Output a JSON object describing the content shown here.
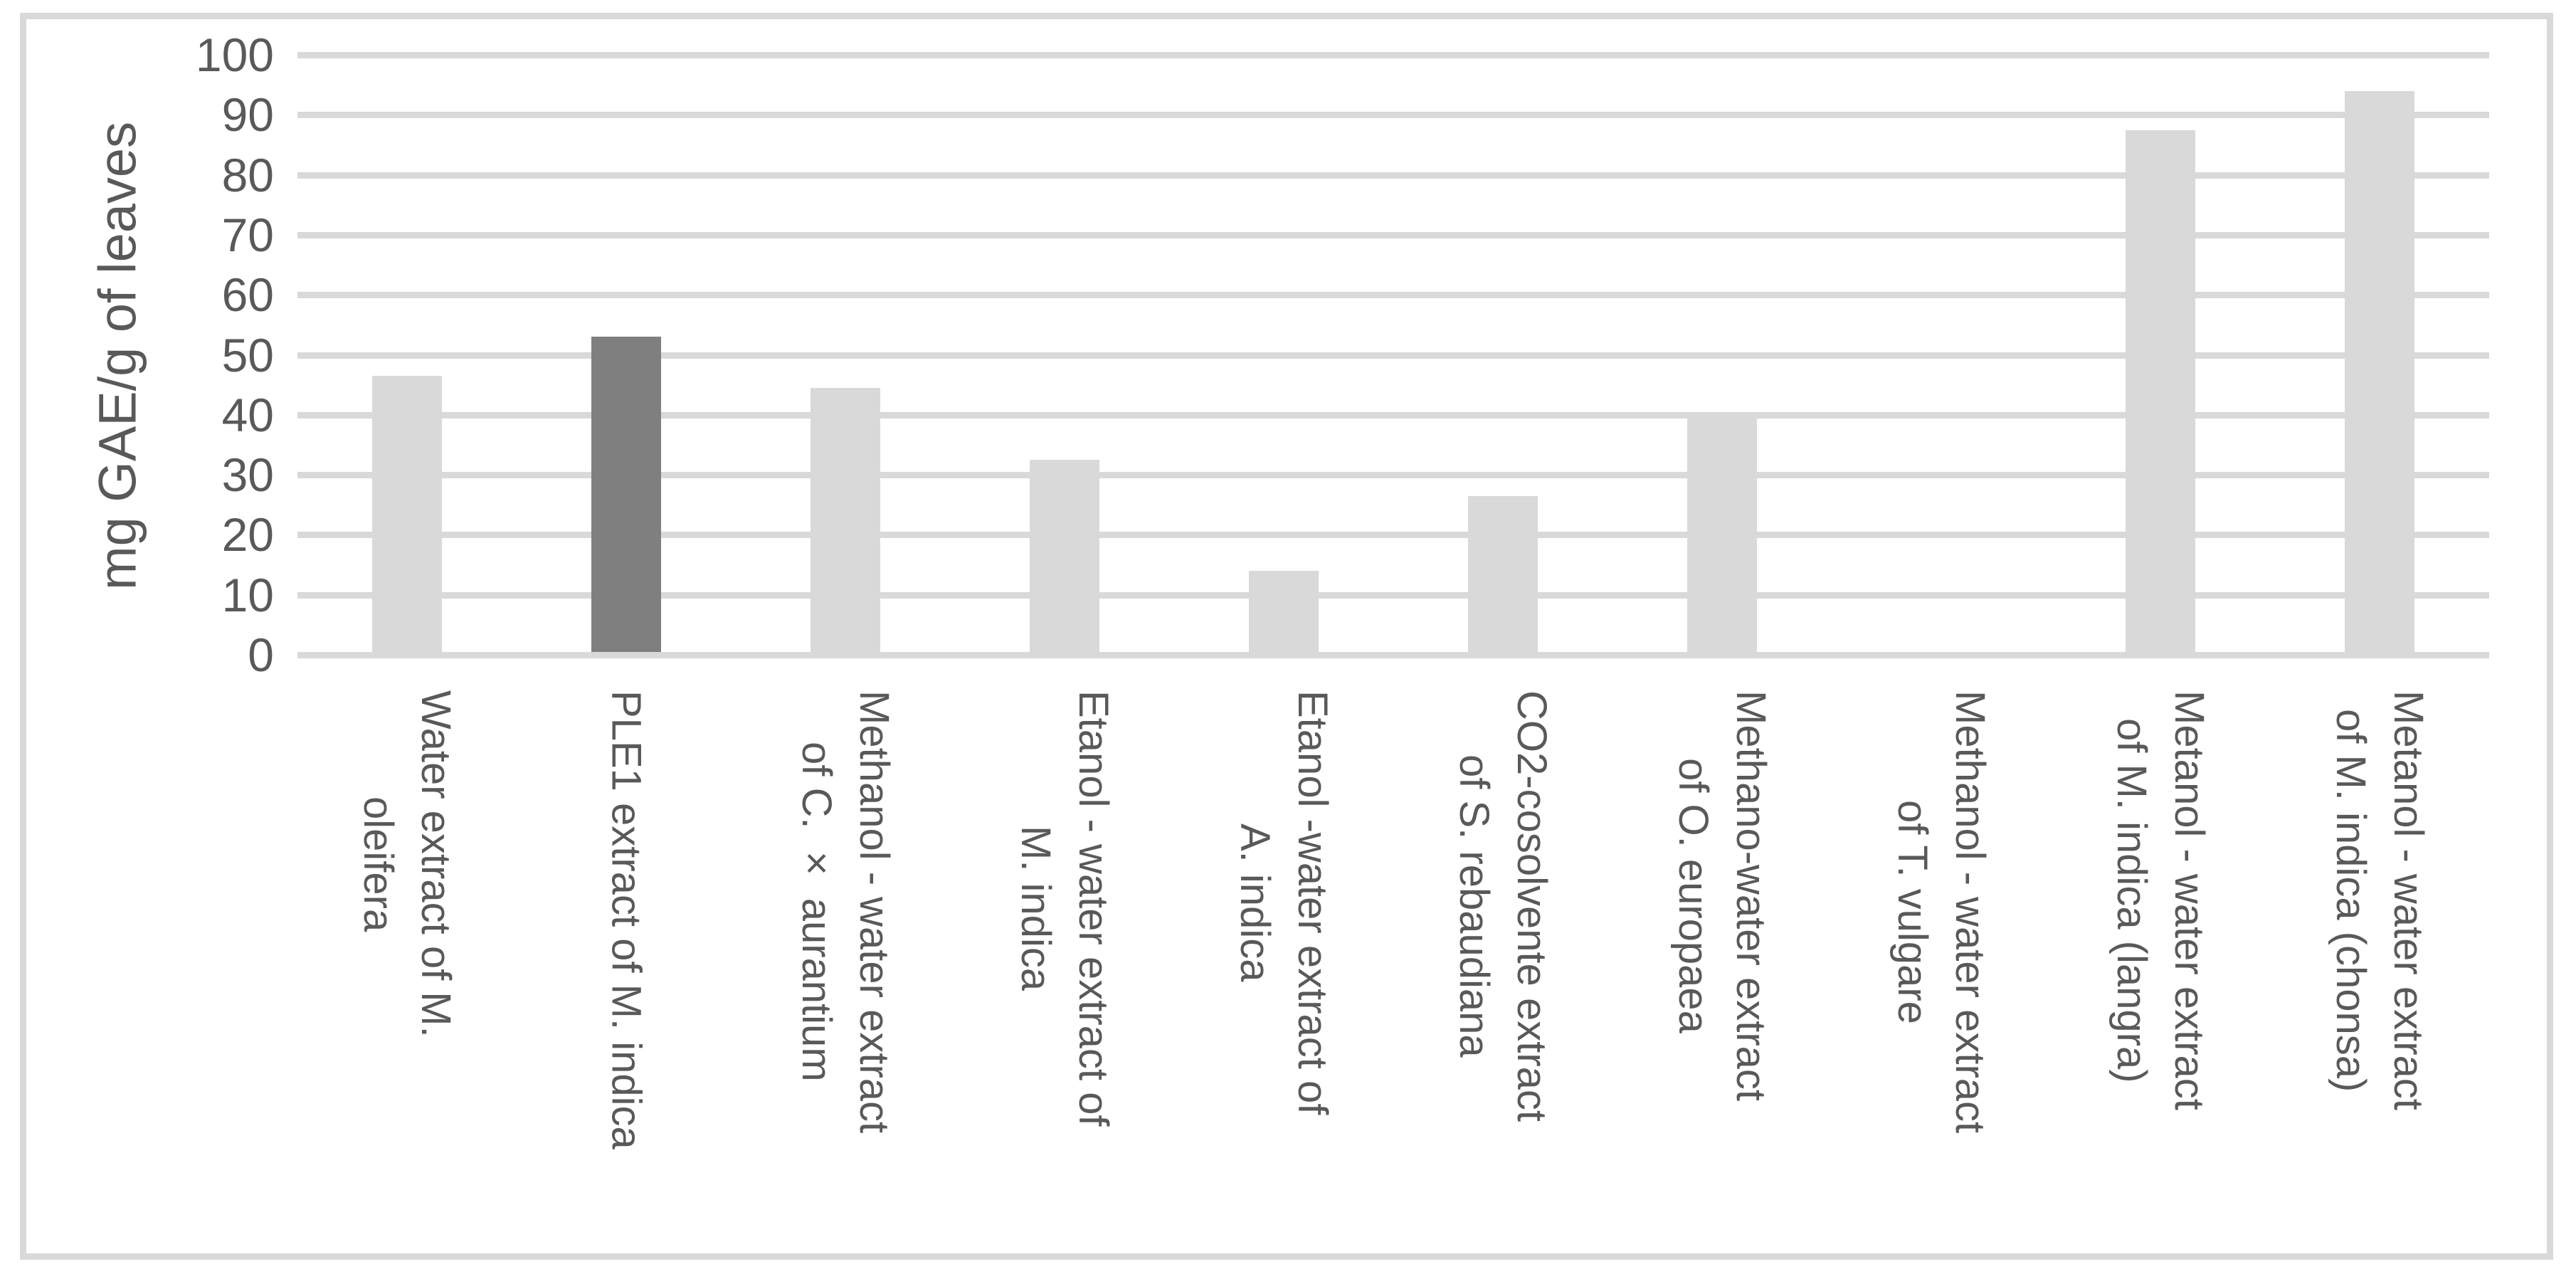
{
  "colors": {
    "bar_default": "#d9d9d9",
    "bar_highlight": "#7f7f7f",
    "gridline": "#d9d9d9",
    "frame_border": "#d9d9d9",
    "text": "#595959",
    "background": "#ffffff"
  },
  "chart_data": {
    "type": "bar",
    "title": "",
    "xlabel": "",
    "ylabel": "mg GAE/g of leaves",
    "ylim": [
      0,
      100
    ],
    "ytick_step": 10,
    "yticks": [
      0,
      10,
      20,
      30,
      40,
      50,
      60,
      70,
      80,
      90,
      100
    ],
    "grid": true,
    "legend": false,
    "categories": [
      "Water extract of M. oleifera",
      "PLE1 extract of M. indica",
      "Methanol - water extract of C. × aurantium",
      "Etanol - water extract of M. indica",
      "Etanol -water extract of A. indica",
      "CO2-cosolvente extract of S. rebaudiana",
      "Methano-water extract of O. europaea",
      "Methanol - water extract of T. vulgare",
      "Metanol - water extract of M. indica (langra)",
      "Metanol - water extract of M. indica (chonsa)"
    ],
    "category_lines": [
      [
        "Water extract of M.",
        "oleifera"
      ],
      [
        "PLE1 extract of M. indica"
      ],
      [
        "Methanol - water extract",
        "of C. × aurantium"
      ],
      [
        "Etanol - water extract of",
        "M. indica"
      ],
      [
        "Etanol -water extract of",
        "A. indica"
      ],
      [
        "CO2-cosolvente extract",
        "of S. rebaudiana"
      ],
      [
        "Methano-water extract",
        "of O. europaea"
      ],
      [
        "Methanol - water extract",
        "of T. vulgare"
      ],
      [
        "Metanol - water extract",
        "of M. indica (langra)"
      ],
      [
        "Metanol - water extract",
        "of M. indica (chonsa)"
      ]
    ],
    "values": [
      46,
      52.5,
      44,
      32,
      13.5,
      26,
      39,
      0,
      87,
      93.5
    ],
    "highlight_index": 1,
    "series_name": "mg GAE/g of leaves"
  }
}
